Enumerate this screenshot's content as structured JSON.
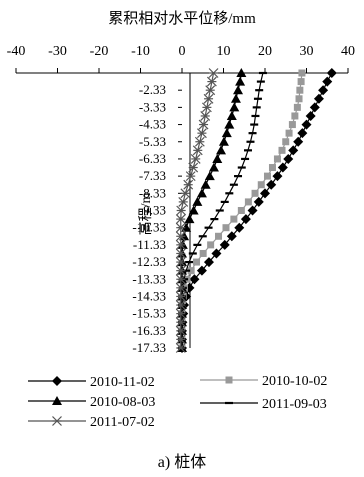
{
  "caption": "a) 桩体",
  "chart_data": {
    "type": "line",
    "title": "",
    "xlabel": "累积相对水平位移/mm",
    "ylabel": "高程/m",
    "xlim": [
      -40,
      40
    ],
    "x_ticks": [
      -40,
      -30,
      -20,
      -10,
      0,
      10,
      20,
      30,
      40
    ],
    "y_ticks": [
      -2.33,
      -3.33,
      -4.33,
      -5.33,
      -6.33,
      -7.33,
      -8.33,
      -9.33,
      -10.33,
      -11.33,
      -12.33,
      -13.33,
      -14.33,
      -15.33,
      -16.33,
      -17.33
    ],
    "x_axis_position": "top",
    "y_axis_at_x": 0,
    "grid": false,
    "legend_position": "bottom",
    "series": [
      {
        "name": "2010-11-02",
        "marker": "diamond",
        "color": "#000000",
        "points": [
          [
            36.1,
            -1.33
          ],
          [
            35.0,
            -1.83
          ],
          [
            34.0,
            -2.33
          ],
          [
            33.0,
            -2.83
          ],
          [
            32.0,
            -3.33
          ],
          [
            31.0,
            -3.83
          ],
          [
            30.0,
            -4.33
          ],
          [
            29.0,
            -4.83
          ],
          [
            28.0,
            -5.33
          ],
          [
            26.8,
            -5.83
          ],
          [
            25.6,
            -6.33
          ],
          [
            24.3,
            -6.83
          ],
          [
            23.0,
            -7.33
          ],
          [
            21.5,
            -7.83
          ],
          [
            20.0,
            -8.33
          ],
          [
            18.5,
            -8.83
          ],
          [
            17.0,
            -9.33
          ],
          [
            15.4,
            -9.83
          ],
          [
            13.8,
            -10.33
          ],
          [
            12.0,
            -10.83
          ],
          [
            10.3,
            -11.33
          ],
          [
            8.3,
            -11.83
          ],
          [
            6.5,
            -12.33
          ],
          [
            4.8,
            -12.83
          ],
          [
            3.0,
            -13.33
          ],
          [
            1.8,
            -13.83
          ],
          [
            1.0,
            -14.33
          ],
          [
            0.5,
            -14.83
          ],
          [
            0.3,
            -15.33
          ],
          [
            0.1,
            -15.83
          ],
          [
            0.0,
            -16.33
          ],
          [
            0.0,
            -16.83
          ],
          [
            0.0,
            -17.33
          ]
        ]
      },
      {
        "name": "2010-10-02",
        "marker": "square",
        "color": "#999999",
        "points": [
          [
            28.9,
            -1.33
          ],
          [
            28.7,
            -1.83
          ],
          [
            28.4,
            -2.33
          ],
          [
            28.2,
            -2.83
          ],
          [
            27.8,
            -3.33
          ],
          [
            27.2,
            -3.83
          ],
          [
            26.6,
            -4.33
          ],
          [
            25.8,
            -4.83
          ],
          [
            25.0,
            -5.33
          ],
          [
            24.1,
            -5.83
          ],
          [
            23.0,
            -6.33
          ],
          [
            21.8,
            -6.83
          ],
          [
            20.6,
            -7.33
          ],
          [
            19.1,
            -7.83
          ],
          [
            17.6,
            -8.33
          ],
          [
            16.0,
            -8.83
          ],
          [
            14.3,
            -9.33
          ],
          [
            12.5,
            -9.83
          ],
          [
            10.6,
            -10.33
          ],
          [
            8.8,
            -10.83
          ],
          [
            6.9,
            -11.33
          ],
          [
            5.1,
            -11.83
          ],
          [
            3.5,
            -12.33
          ],
          [
            2.2,
            -12.83
          ],
          [
            1.2,
            -13.33
          ],
          [
            0.6,
            -13.83
          ],
          [
            0.3,
            -14.33
          ],
          [
            0.1,
            -14.83
          ],
          [
            0.0,
            -15.33
          ],
          [
            0.0,
            -15.83
          ],
          [
            0.0,
            -16.33
          ],
          [
            0.0,
            -16.83
          ],
          [
            0.0,
            -17.33
          ]
        ]
      },
      {
        "name": "2010-08-03",
        "marker": "triangle",
        "color": "#000000",
        "points": [
          [
            14.3,
            -1.33
          ],
          [
            14.0,
            -1.83
          ],
          [
            13.5,
            -2.33
          ],
          [
            13.0,
            -2.83
          ],
          [
            12.6,
            -3.33
          ],
          [
            12.0,
            -3.83
          ],
          [
            11.4,
            -4.33
          ],
          [
            10.8,
            -4.83
          ],
          [
            10.1,
            -5.33
          ],
          [
            9.4,
            -5.83
          ],
          [
            8.5,
            -6.33
          ],
          [
            7.7,
            -6.83
          ],
          [
            6.7,
            -7.33
          ],
          [
            5.7,
            -7.83
          ],
          [
            4.8,
            -8.33
          ],
          [
            3.7,
            -8.83
          ],
          [
            2.8,
            -9.33
          ],
          [
            1.8,
            -9.83
          ],
          [
            1.0,
            -10.33
          ],
          [
            0.5,
            -10.83
          ],
          [
            0.2,
            -11.33
          ],
          [
            0.0,
            -11.83
          ],
          [
            0.0,
            -12.33
          ],
          [
            0.0,
            -12.83
          ],
          [
            0.0,
            -13.33
          ],
          [
            0.0,
            -13.83
          ],
          [
            0.0,
            -14.33
          ],
          [
            0.0,
            -14.83
          ],
          [
            0.0,
            -15.33
          ],
          [
            0.0,
            -15.83
          ],
          [
            0.0,
            -16.33
          ],
          [
            0.0,
            -16.83
          ],
          [
            0.0,
            -17.33
          ]
        ]
      },
      {
        "name": "2011-09-03",
        "marker": "dash",
        "color": "#000000",
        "points": [
          [
            19.5,
            -1.33
          ],
          [
            19.0,
            -1.83
          ],
          [
            18.6,
            -2.33
          ],
          [
            18.3,
            -2.83
          ],
          [
            18.0,
            -3.33
          ],
          [
            17.7,
            -3.83
          ],
          [
            17.4,
            -4.33
          ],
          [
            17.0,
            -4.83
          ],
          [
            16.5,
            -5.33
          ],
          [
            15.9,
            -5.83
          ],
          [
            15.2,
            -6.33
          ],
          [
            14.4,
            -6.83
          ],
          [
            13.5,
            -7.33
          ],
          [
            12.5,
            -7.83
          ],
          [
            11.4,
            -8.33
          ],
          [
            10.3,
            -8.83
          ],
          [
            9.1,
            -9.33
          ],
          [
            7.8,
            -9.83
          ],
          [
            6.4,
            -10.33
          ],
          [
            5.0,
            -10.83
          ],
          [
            3.7,
            -11.33
          ],
          [
            2.6,
            -11.83
          ],
          [
            1.7,
            -12.33
          ],
          [
            1.0,
            -12.83
          ],
          [
            0.5,
            -13.33
          ],
          [
            0.2,
            -13.83
          ],
          [
            0.0,
            -14.33
          ],
          [
            0.0,
            -14.83
          ],
          [
            0.0,
            -15.33
          ],
          [
            0.0,
            -15.83
          ],
          [
            0.0,
            -16.33
          ],
          [
            0.0,
            -16.83
          ],
          [
            0.0,
            -17.33
          ]
        ]
      },
      {
        "name": "2011-07-02",
        "marker": "star",
        "color": "#555555",
        "points": [
          [
            7.6,
            -1.33
          ],
          [
            7.2,
            -1.83
          ],
          [
            6.8,
            -2.33
          ],
          [
            6.4,
            -2.83
          ],
          [
            6.0,
            -3.33
          ],
          [
            5.6,
            -3.83
          ],
          [
            5.2,
            -4.33
          ],
          [
            4.8,
            -4.83
          ],
          [
            4.3,
            -5.33
          ],
          [
            3.8,
            -5.83
          ],
          [
            3.3,
            -6.33
          ],
          [
            2.7,
            -6.83
          ],
          [
            2.1,
            -7.33
          ],
          [
            1.5,
            -7.83
          ],
          [
            0.8,
            -8.33
          ],
          [
            0.3,
            -8.83
          ],
          [
            -0.2,
            -9.33
          ],
          [
            -0.3,
            -9.83
          ],
          [
            -0.3,
            -10.33
          ],
          [
            -0.3,
            -10.83
          ],
          [
            -0.3,
            -11.33
          ],
          [
            -0.3,
            -11.83
          ],
          [
            -0.3,
            -12.33
          ],
          [
            -0.3,
            -12.83
          ],
          [
            -0.3,
            -13.33
          ],
          [
            -0.3,
            -13.83
          ],
          [
            -0.3,
            -14.33
          ],
          [
            -0.3,
            -14.83
          ],
          [
            -0.3,
            -15.33
          ],
          [
            -0.3,
            -15.83
          ],
          [
            -0.3,
            -16.33
          ],
          [
            -0.3,
            -16.83
          ],
          [
            -0.3,
            -17.33
          ]
        ]
      }
    ]
  }
}
